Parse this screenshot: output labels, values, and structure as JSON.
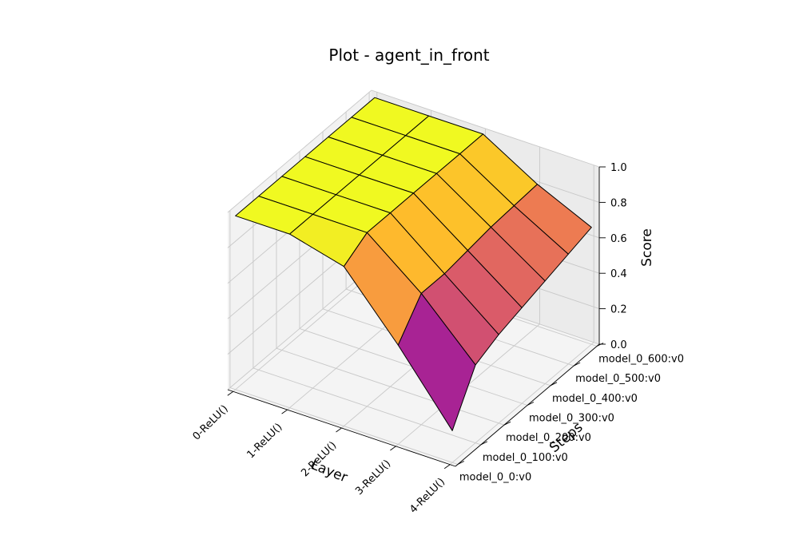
{
  "chart_data": {
    "type": "surface3d",
    "title": "Plot - agent_in_front",
    "xlabel": "Layer",
    "ylabel": "Steps",
    "zlabel": "Score",
    "zlim": [
      0,
      1
    ],
    "colormap": "plasma",
    "grid": true,
    "layers": [
      "0-ReLU()",
      "1-ReLU()",
      "2-ReLU()",
      "3-ReLU()",
      "4-ReLU()"
    ],
    "steps": [
      "model_0_0:v0",
      "model_0_100:v0",
      "model_0_200:v0",
      "model_0_300:v0",
      "model_0_400:v0",
      "model_0_500:v0",
      "model_0_600:v0"
    ],
    "z_ticks": [
      "0.0",
      "0.2",
      "0.4",
      "0.6",
      "0.8",
      "1.0"
    ],
    "values": [
      [
        0.98,
        0.98,
        0.98,
        0.98,
        0.98,
        0.98,
        0.98
      ],
      [
        0.98,
        0.98,
        0.98,
        0.98,
        0.98,
        0.98,
        0.98
      ],
      [
        0.9,
        0.98,
        0.98,
        0.98,
        0.98,
        0.98,
        0.98
      ],
      [
        0.56,
        0.74,
        0.74,
        0.76,
        0.78,
        0.79,
        0.8
      ],
      [
        0.18,
        0.44,
        0.5,
        0.54,
        0.58,
        0.62,
        0.66
      ]
    ]
  }
}
